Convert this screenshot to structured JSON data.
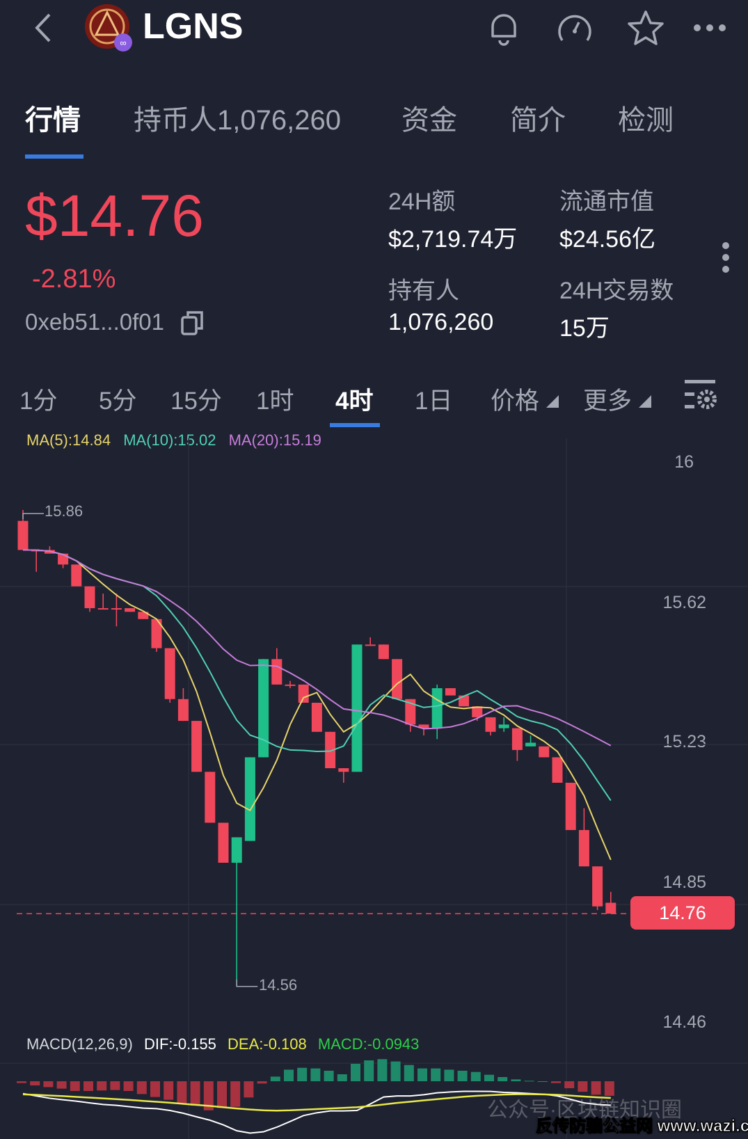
{
  "header": {
    "symbol": "LGNS",
    "icons": [
      "back-icon",
      "token-logo",
      "bell-icon",
      "gauge-icon",
      "star-icon",
      "more-horizontal-icon"
    ]
  },
  "tabs": [
    {
      "label": "行情",
      "active": true
    },
    {
      "label": "持币人1,076,260",
      "active": false
    },
    {
      "label": "资金",
      "active": false
    },
    {
      "label": "简介",
      "active": false
    },
    {
      "label": "检测",
      "active": false
    }
  ],
  "price": {
    "value": "$14.76",
    "change": "-2.81%",
    "address": "0xeb51...0f01"
  },
  "stats": [
    {
      "label": "24H额",
      "value": "$2,719.74万"
    },
    {
      "label": "流通市值",
      "value": "$24.56亿"
    },
    {
      "label": "持有人",
      "value": "1,076,260"
    },
    {
      "label": "24H交易数",
      "value": "15万"
    }
  ],
  "timeframes": [
    {
      "label": "1分"
    },
    {
      "label": "5分"
    },
    {
      "label": "15分"
    },
    {
      "label": "1时"
    },
    {
      "label": "4时",
      "active": true
    },
    {
      "label": "1日"
    },
    {
      "label": "价格"
    },
    {
      "label": "更多"
    }
  ],
  "colors": {
    "up": "#1fbf8a",
    "down": "#f0475b",
    "ma5": "#e8d56a",
    "ma10": "#4fd1b5",
    "ma20": "#c77ddb",
    "accent": "#3a7be0",
    "dif": "#ffffff",
    "dea": "#e8e84a"
  },
  "ma_legend": {
    "ma5": "MA(5):14.84",
    "ma10": "MA(10):15.02",
    "ma20": "MA(20):15.19"
  },
  "chart_data": {
    "type": "candlestick",
    "y_ticks": [
      "16",
      "15.62",
      "15.23",
      "14.85",
      "14.46"
    ],
    "ylim": [
      14.46,
      16
    ],
    "current_price": "14.76",
    "high_label": "15.86",
    "low_label": "14.56",
    "candles": [
      [
        15.84,
        15.76,
        15.87,
        15.76
      ],
      [
        15.76,
        15.76,
        15.76,
        15.7
      ],
      [
        15.76,
        15.75,
        15.77,
        15.75
      ],
      [
        15.75,
        15.72,
        15.75,
        15.71
      ],
      [
        15.72,
        15.66,
        15.72,
        15.66
      ],
      [
        15.66,
        15.6,
        15.66,
        15.59
      ],
      [
        15.6,
        15.6,
        15.64,
        15.6
      ],
      [
        15.6,
        15.6,
        15.64,
        15.55
      ],
      [
        15.6,
        15.59,
        15.6,
        15.59
      ],
      [
        15.59,
        15.57,
        15.59,
        15.57
      ],
      [
        15.57,
        15.49,
        15.57,
        15.48
      ],
      [
        15.49,
        15.35,
        15.49,
        15.34
      ],
      [
        15.35,
        15.29,
        15.38,
        15.29
      ],
      [
        15.29,
        15.15,
        15.29,
        15.15
      ],
      [
        15.15,
        15.01,
        15.15,
        15.01
      ],
      [
        15.01,
        14.9,
        15.01,
        14.9
      ],
      [
        14.9,
        14.97,
        14.97,
        14.56
      ],
      [
        14.96,
        15.19,
        15.19,
        14.96
      ],
      [
        15.19,
        15.46,
        15.46,
        15.19
      ],
      [
        15.46,
        15.39,
        15.49,
        15.39
      ],
      [
        15.39,
        15.39,
        15.4,
        15.38
      ],
      [
        15.39,
        15.34,
        15.39,
        15.34
      ],
      [
        15.34,
        15.26,
        15.34,
        15.26
      ],
      [
        15.26,
        15.16,
        15.26,
        15.16
      ],
      [
        15.16,
        15.15,
        15.16,
        15.12
      ],
      [
        15.15,
        15.5,
        15.5,
        15.15
      ],
      [
        15.5,
        15.5,
        15.52,
        15.5
      ],
      [
        15.5,
        15.46,
        15.5,
        15.46
      ],
      [
        15.46,
        15.35,
        15.46,
        15.35
      ],
      [
        15.35,
        15.28,
        15.35,
        15.26
      ],
      [
        15.28,
        15.27,
        15.28,
        15.25
      ],
      [
        15.27,
        15.38,
        15.39,
        15.24
      ],
      [
        15.38,
        15.36,
        15.38,
        15.36
      ],
      [
        15.36,
        15.33,
        15.36,
        15.33
      ],
      [
        15.33,
        15.3,
        15.33,
        15.29
      ],
      [
        15.3,
        15.26,
        15.3,
        15.25
      ],
      [
        15.27,
        15.28,
        15.3,
        15.26
      ],
      [
        15.27,
        15.21,
        15.27,
        15.18
      ],
      [
        15.22,
        15.23,
        15.25,
        15.22
      ],
      [
        15.22,
        15.19,
        15.22,
        15.19
      ],
      [
        15.19,
        15.12,
        15.19,
        15.12
      ],
      [
        15.12,
        14.99,
        15.12,
        14.99
      ],
      [
        14.99,
        14.89,
        15.05,
        14.89
      ],
      [
        14.89,
        14.78,
        14.89,
        14.77
      ],
      [
        14.79,
        14.76,
        14.82,
        14.76
      ]
    ],
    "macd": {
      "legend": {
        "title": "MACD(12,26,9)",
        "dif": "DIF:-0.155",
        "dea": "DEA:-0.108",
        "macd": "MACD:-0.0943"
      },
      "hist": [
        -0.012,
        -0.027,
        -0.038,
        -0.048,
        -0.063,
        -0.063,
        -0.06,
        -0.057,
        -0.063,
        -0.083,
        -0.102,
        -0.12,
        -0.143,
        -0.158,
        -0.188,
        -0.173,
        -0.165,
        -0.105,
        -0.015,
        0.03,
        0.075,
        0.087,
        0.083,
        0.068,
        0.045,
        0.113,
        0.135,
        0.143,
        0.128,
        0.105,
        0.083,
        0.083,
        0.075,
        0.068,
        0.06,
        0.042,
        0.027,
        0.012,
        0.003,
        0,
        -0.012,
        -0.045,
        -0.068,
        -0.087,
        -0.0943
      ],
      "dif": [
        -0.08,
        -0.095,
        -0.11,
        -0.12,
        -0.129,
        -0.14,
        -0.15,
        -0.156,
        -0.165,
        -0.174,
        -0.177,
        -0.189,
        -0.207,
        -0.23,
        -0.252,
        -0.282,
        -0.32,
        -0.335,
        -0.327,
        -0.297,
        -0.26,
        -0.222,
        -0.204,
        -0.192,
        -0.192,
        -0.189,
        -0.147,
        -0.102,
        -0.095,
        -0.095,
        -0.087,
        -0.075,
        -0.069,
        -0.065,
        -0.065,
        -0.066,
        -0.072,
        -0.075,
        -0.08,
        -0.084,
        -0.095,
        -0.117,
        -0.14,
        -0.15,
        -0.155
      ],
      "dea": [
        -0.085,
        -0.088,
        -0.092,
        -0.096,
        -0.101,
        -0.106,
        -0.111,
        -0.116,
        -0.121,
        -0.127,
        -0.133,
        -0.139,
        -0.146,
        -0.153,
        -0.16,
        -0.168,
        -0.176,
        -0.183,
        -0.188,
        -0.19,
        -0.188,
        -0.184,
        -0.18,
        -0.176,
        -0.172,
        -0.168,
        -0.16,
        -0.15,
        -0.14,
        -0.132,
        -0.124,
        -0.116,
        -0.108,
        -0.1,
        -0.094,
        -0.09,
        -0.086,
        -0.084,
        -0.084,
        -0.085,
        -0.088,
        -0.093,
        -0.099,
        -0.104,
        -0.108
      ]
    }
  },
  "watermark": {
    "faint": "公众号·区块链知识圈",
    "site": "反传防骗公益网 www.wazi.cc"
  }
}
